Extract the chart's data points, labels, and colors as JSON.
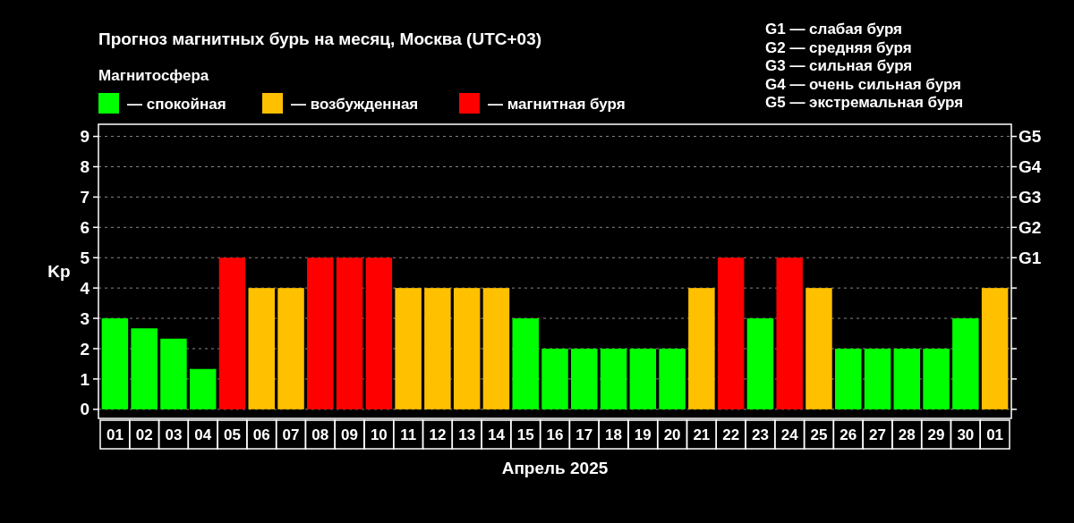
{
  "chart_data": {
    "type": "bar",
    "title": "Прогноз магнитных бурь на месяц, Москва (UTC+03)",
    "xlabel": "Апрель 2025",
    "ylabel": "Kp",
    "legend_title": "Магнитосфера",
    "legend": "top left",
    "stacked": true,
    "grid": "y",
    "categories": [
      "01",
      "02",
      "03",
      "04",
      "05",
      "06",
      "07",
      "08",
      "09",
      "10",
      "11",
      "12",
      "13",
      "14",
      "15",
      "16",
      "17",
      "18",
      "19",
      "20",
      "21",
      "22",
      "23",
      "24",
      "25",
      "26",
      "27",
      "28",
      "29",
      "30",
      "01"
    ],
    "series": [
      {
        "name": "— спокойная",
        "color": "#00ff00",
        "values": [
          3,
          2.67,
          2.33,
          1.33,
          null,
          null,
          null,
          null,
          null,
          null,
          null,
          null,
          null,
          null,
          3,
          2,
          2,
          2,
          2,
          2,
          null,
          null,
          3,
          null,
          null,
          2,
          2,
          2,
          2,
          3,
          null
        ]
      },
      {
        "name": "— возбужденная",
        "color": "#ffc000",
        "values": [
          null,
          null,
          null,
          null,
          null,
          4,
          4,
          null,
          null,
          null,
          4,
          4,
          4,
          4,
          null,
          null,
          null,
          null,
          null,
          null,
          4,
          null,
          null,
          null,
          4,
          null,
          null,
          null,
          null,
          null,
          4
        ]
      },
      {
        "name": "— магнитная буря",
        "color": "#ff0000",
        "values": [
          null,
          null,
          null,
          null,
          5,
          null,
          null,
          5,
          5,
          5,
          null,
          null,
          null,
          null,
          null,
          null,
          null,
          null,
          null,
          null,
          null,
          5,
          null,
          5,
          null,
          null,
          null,
          null,
          null,
          null,
          null
        ]
      }
    ],
    "ylim": [
      -0.3,
      9.4
    ],
    "yticks": [
      0,
      1,
      2,
      3,
      4,
      5,
      6,
      7,
      8,
      9
    ],
    "annotations": [
      "G1 — слабая буря",
      "G2 — средняя буря",
      "G3 — сильная буря",
      "G4 — очень сильная буря",
      "G5 — экстремальная буря",
      "G1",
      "G2",
      "G3",
      "G4",
      "G5"
    ]
  }
}
